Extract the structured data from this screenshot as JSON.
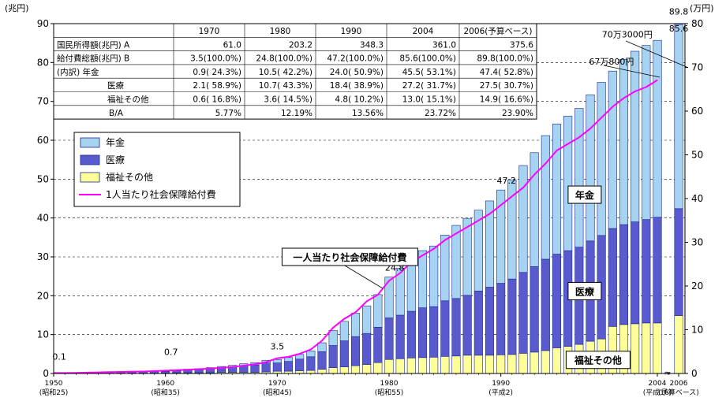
{
  "chart_data": {
    "type": "bar",
    "stacked": true,
    "left_axis": {
      "unit_label": "(兆円)",
      "ylim": [
        0,
        90
      ],
      "ticks": [
        0,
        10,
        20,
        30,
        40,
        50,
        60,
        70,
        80,
        90
      ]
    },
    "right_axis": {
      "unit_label": "(万円)",
      "ylim": [
        0,
        80
      ],
      "ticks": [
        0,
        10,
        20,
        30,
        40,
        50,
        60,
        70,
        80
      ]
    },
    "grid": "horizontal-dashed",
    "x_ticks": [
      {
        "year": 1950,
        "label": "1950",
        "sub": "(昭和25)"
      },
      {
        "year": 1960,
        "label": "1960",
        "sub": "(昭和35)"
      },
      {
        "year": 1970,
        "label": "1970",
        "sub": "(昭和45)"
      },
      {
        "year": 1980,
        "label": "1980",
        "sub": "(昭和55)"
      },
      {
        "year": 1990,
        "label": "1990",
        "sub": "(平成2)"
      },
      {
        "year": 2004,
        "label": "2004",
        "sub": "(平成16)"
      },
      {
        "year": 2006,
        "label": "2006",
        "sub": "(予算ベース)"
      }
    ],
    "years": [
      1951,
      1952,
      1953,
      1954,
      1955,
      1956,
      1957,
      1958,
      1959,
      1960,
      1961,
      1962,
      1963,
      1964,
      1965,
      1966,
      1967,
      1968,
      1969,
      1970,
      1971,
      1972,
      1973,
      1974,
      1975,
      1976,
      1977,
      1978,
      1979,
      1980,
      1981,
      1982,
      1983,
      1984,
      1985,
      1986,
      1987,
      1988,
      1989,
      1990,
      1991,
      1992,
      1993,
      1994,
      1995,
      1996,
      1997,
      1998,
      1999,
      2000,
      2001,
      2002,
      2003,
      2004,
      2006
    ],
    "series": [
      {
        "name": "年金",
        "color": "#a6d3f2",
        "values": [
          0.03,
          0.05,
          0.07,
          0.08,
          0.1,
          0.1,
          0.1,
          0.1,
          0.1,
          0.1,
          0.1,
          0.2,
          0.2,
          0.3,
          0.3,
          0.4,
          0.5,
          0.6,
          0.7,
          0.9,
          1.0,
          1.2,
          1.5,
          2.3,
          3.9,
          5.0,
          6.0,
          7.1,
          8.4,
          10.5,
          12.1,
          13.5,
          14.7,
          15.6,
          16.9,
          18.8,
          19.8,
          20.8,
          22.2,
          24.0,
          25.5,
          27.5,
          29.3,
          31.8,
          33.5,
          34.6,
          35.7,
          37.6,
          39.4,
          40.5,
          42.5,
          43.9,
          44.8,
          45.5,
          47.4
        ]
      },
      {
        "name": "医療",
        "color": "#5a5acf",
        "values": [
          0.05,
          0.1,
          0.15,
          0.2,
          0.25,
          0.3,
          0.3,
          0.4,
          0.4,
          0.4,
          0.5,
          0.7,
          0.8,
          1.0,
          1.2,
          1.4,
          1.7,
          1.9,
          2.3,
          2.1,
          2.5,
          3.0,
          3.5,
          4.5,
          5.7,
          6.7,
          7.5,
          8.0,
          9.1,
          10.7,
          11.2,
          12.0,
          12.8,
          13.0,
          14.3,
          14.8,
          15.4,
          16.5,
          17.5,
          18.4,
          19.4,
          20.8,
          22.0,
          23.5,
          24.1,
          24.6,
          25.0,
          25.8,
          26.6,
          25.2,
          25.7,
          26.2,
          26.6,
          27.2,
          27.5
        ]
      },
      {
        "name": "福祉その他",
        "color": "#ffff99",
        "values": [
          0.02,
          0.05,
          0.06,
          0.07,
          0.1,
          0.1,
          0.1,
          0.1,
          0.1,
          0.1,
          0.2,
          0.2,
          0.2,
          0.2,
          0.3,
          0.3,
          0.3,
          0.3,
          0.4,
          0.6,
          0.6,
          0.7,
          0.8,
          1.1,
          1.5,
          1.7,
          2.0,
          2.3,
          2.8,
          3.6,
          3.8,
          4.0,
          4.1,
          4.2,
          4.4,
          4.5,
          4.7,
          4.7,
          4.7,
          4.8,
          4.9,
          5.2,
          5.5,
          5.9,
          6.6,
          7.0,
          7.5,
          8.3,
          8.9,
          12.1,
          12.6,
          12.8,
          13.0,
          13.0,
          14.9
        ]
      }
    ],
    "line_series": {
      "name": "1人当たり社会保障給付費",
      "color": "#ff00ff",
      "axis": "right",
      "values": [
        0.1,
        0.14,
        0.2,
        0.25,
        0.3,
        0.35,
        0.4,
        0.45,
        0.55,
        0.65,
        0.75,
        0.85,
        1.0,
        1.1,
        1.3,
        1.5,
        1.8,
        2.1,
        2.6,
        3.5,
        3.8,
        4.5,
        5.5,
        7.5,
        10.5,
        12.5,
        14.0,
        16.5,
        18.0,
        21.2,
        23.0,
        25.5,
        27.0,
        28.5,
        30.5,
        32.0,
        33.5,
        35.0,
        36.5,
        38.5,
        40.5,
        42.5,
        45.5,
        48.0,
        51.0,
        52.5,
        54.0,
        56.0,
        58.5,
        61.0,
        63.0,
        64.5,
        65.5,
        67.1,
        null
      ]
    },
    "annotations": [
      {
        "text": "0.1",
        "x": 1950.5,
        "y": 3.5
      },
      {
        "text": "0.7",
        "x": 1960.5,
        "y": 4.8
      },
      {
        "text": "3.5",
        "x": 1970,
        "y": 6.2
      },
      {
        "text": "24.8",
        "x": 1980.5,
        "y": 26.5
      },
      {
        "text": "47.2",
        "x": 1990.5,
        "y": 48.9
      },
      {
        "text": "85.6",
        "x": 2004.5,
        "y": 88.0
      },
      {
        "text": "89.8",
        "x": 2006,
        "y": 92.3
      },
      {
        "text": "70万3000円",
        "x": 2001.3,
        "y": 86.5
      },
      {
        "text": "67万800円",
        "x": 1999.9,
        "y": 79.5
      }
    ],
    "callouts": [
      {
        "text": "一人当たり社会保障給付費",
        "x": 1976.5,
        "y": 30.0
      },
      {
        "text": "年金",
        "x": 1997.5,
        "y": 46.0
      },
      {
        "text": "医療",
        "x": 1997.5,
        "y": 21.2
      },
      {
        "text": "福祉その他",
        "x": 1998.7,
        "y": 3.5
      }
    ],
    "legend": {
      "placement": "upper-left",
      "items": [
        {
          "label": "年金",
          "kind": "bar",
          "color": "#a6d3f2"
        },
        {
          "label": "医療",
          "kind": "bar",
          "color": "#5a5acf"
        },
        {
          "label": "福祉その他",
          "kind": "bar",
          "color": "#ffff99"
        },
        {
          "label": "1人当たり社会保障給付費",
          "kind": "line",
          "color": "#ff00ff"
        }
      ]
    },
    "table": {
      "columns": [
        "",
        "1970",
        "1980",
        "1990",
        "2004",
        "2006(予算ベース)"
      ],
      "rows": [
        [
          "国民所得額(兆円) A",
          "61.0",
          "203.2",
          "348.3",
          "361.0",
          "375.6"
        ],
        [
          "給付費総額(兆円) B",
          "3.5(100.0%)",
          "24.8(100.0%)",
          "47.2(100.0%)",
          "85.6(100.0%)",
          "89.8(100.0%)"
        ],
        [
          "(内訳) 年金",
          "0.9( 24.3%)",
          "10.5( 42.2%)",
          "24.0( 50.9%)",
          "45.5( 53.1%)",
          "47.4( 52.8%)"
        ],
        [
          "医療",
          "2.1( 58.9%)",
          "10.7( 43.3%)",
          "18.4( 38.9%)",
          "27.2( 31.7%)",
          "27.5( 30.7%)"
        ],
        [
          "福祉その他",
          "0.6( 16.8%)",
          "3.6( 14.5%)",
          "4.8( 10.2%)",
          "13.0( 15.1%)",
          "14.9( 16.6%)"
        ],
        [
          "B/A",
          "5.77%",
          "12.19%",
          "13.56%",
          "23.72%",
          "23.90%"
        ]
      ]
    }
  }
}
